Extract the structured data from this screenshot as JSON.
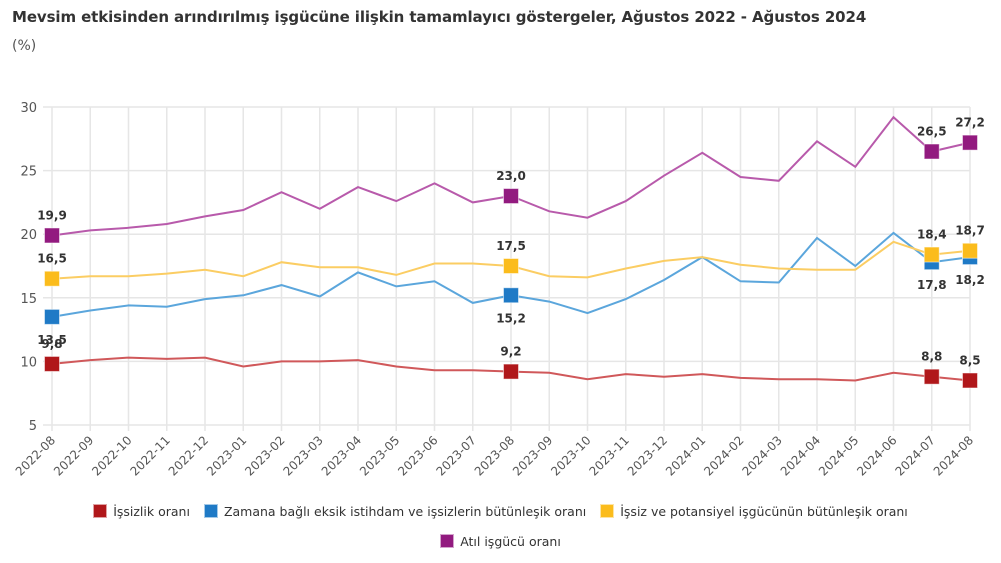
{
  "title": "Mevsim etkisinden arındırılmış işgücüne ilişkin tamamlayıcı göstergeler, Ağustos 2022 - Ağustos 2024",
  "subtitle": "(%)",
  "chart_data": {
    "type": "line",
    "title": "Mevsim etkisinden arındırılmış işgücüne ilişkin tamamlayıcı göstergeler, Ağustos 2022 - Ağustos 2024",
    "subtitle": "(%)",
    "xlabel": "",
    "ylabel": "(%)",
    "ylim": [
      5,
      30
    ],
    "yticks": [
      5,
      10,
      15,
      20,
      25,
      30
    ],
    "ytick_labels": [
      "5",
      "10",
      "15",
      "20",
      "25",
      "30"
    ],
    "grid": true,
    "legend_position": "bottom",
    "x": [
      "2022-08",
      "2022-09",
      "2022-10",
      "2022-11",
      "2022-12",
      "2023-01",
      "2023-02",
      "2023-03",
      "2023-04",
      "2023-05",
      "2023-06",
      "2023-07",
      "2023-08",
      "2023-09",
      "2023-10",
      "2023-11",
      "2023-12",
      "2024-01",
      "2024-02",
      "2024-03",
      "2024-04",
      "2024-05",
      "2024-06",
      "2024-07",
      "2024-08"
    ],
    "marked_indices": [
      0,
      12,
      23,
      24
    ],
    "series": [
      {
        "name": "İşsizlik oranı",
        "color": "#b0171a",
        "line_color": "#d0585a",
        "values": [
          9.8,
          10.1,
          10.3,
          10.2,
          10.3,
          9.6,
          10.0,
          10.0,
          10.1,
          9.6,
          9.3,
          9.3,
          9.2,
          9.1,
          8.6,
          9.0,
          8.8,
          9.0,
          8.7,
          8.6,
          8.6,
          8.5,
          9.1,
          8.8,
          8.5
        ],
        "labels": {
          "0": "9,8",
          "12": "9,2",
          "23": "8,8",
          "24": "8,5"
        },
        "label_side": {
          "0": "above",
          "12": "above",
          "23": "above",
          "24": "above"
        }
      },
      {
        "name": "Zamana bağlı eksik istihdam ve işsizlerin bütünleşik oranı",
        "color": "#1f7ac6",
        "line_color": "#5ba6dc",
        "values": [
          13.5,
          14.0,
          14.4,
          14.3,
          14.9,
          15.2,
          16.0,
          15.1,
          17.0,
          15.9,
          16.3,
          14.6,
          15.2,
          14.7,
          13.8,
          14.9,
          16.4,
          18.2,
          16.3,
          16.2,
          19.7,
          17.5,
          20.1,
          17.8,
          18.2
        ],
        "labels": {
          "0": "13,5",
          "12": "15,2",
          "23": "17,8",
          "24": "18,2"
        },
        "label_side": {
          "0": "below",
          "12": "below",
          "23": "below",
          "24": "below"
        }
      },
      {
        "name": "İşsiz ve potansiyel işgücünün bütünleşik oranı",
        "color": "#fbbc1c",
        "line_color": "#fbcd63",
        "values": [
          16.5,
          16.7,
          16.7,
          16.9,
          17.2,
          16.7,
          17.8,
          17.4,
          17.4,
          16.8,
          17.7,
          17.7,
          17.5,
          16.7,
          16.6,
          17.3,
          17.9,
          18.2,
          17.6,
          17.3,
          17.2,
          17.2,
          19.4,
          18.4,
          18.7
        ],
        "labels": {
          "0": "16,5",
          "12": "17,5",
          "23": "18,4",
          "24": "18,7"
        },
        "label_side": {
          "0": "above",
          "12": "above",
          "23": "above",
          "24": "above"
        }
      },
      {
        "name": "Atıl işgücü oranı",
        "color": "#921a7f",
        "line_color": "#b85aab",
        "values": [
          19.9,
          20.3,
          20.5,
          20.8,
          21.4,
          21.9,
          23.3,
          22.0,
          23.7,
          22.6,
          24.0,
          22.5,
          23.0,
          21.8,
          21.3,
          22.6,
          24.6,
          26.4,
          24.5,
          24.2,
          27.3,
          25.3,
          29.2,
          26.5,
          27.2
        ],
        "labels": {
          "0": "19,9",
          "12": "23,0",
          "23": "26,5",
          "24": "27,2"
        },
        "label_side": {
          "0": "above",
          "12": "above",
          "23": "above",
          "24": "above"
        }
      }
    ]
  },
  "legend": {
    "rows": [
      [
        0,
        1,
        2
      ],
      [
        3
      ]
    ]
  }
}
